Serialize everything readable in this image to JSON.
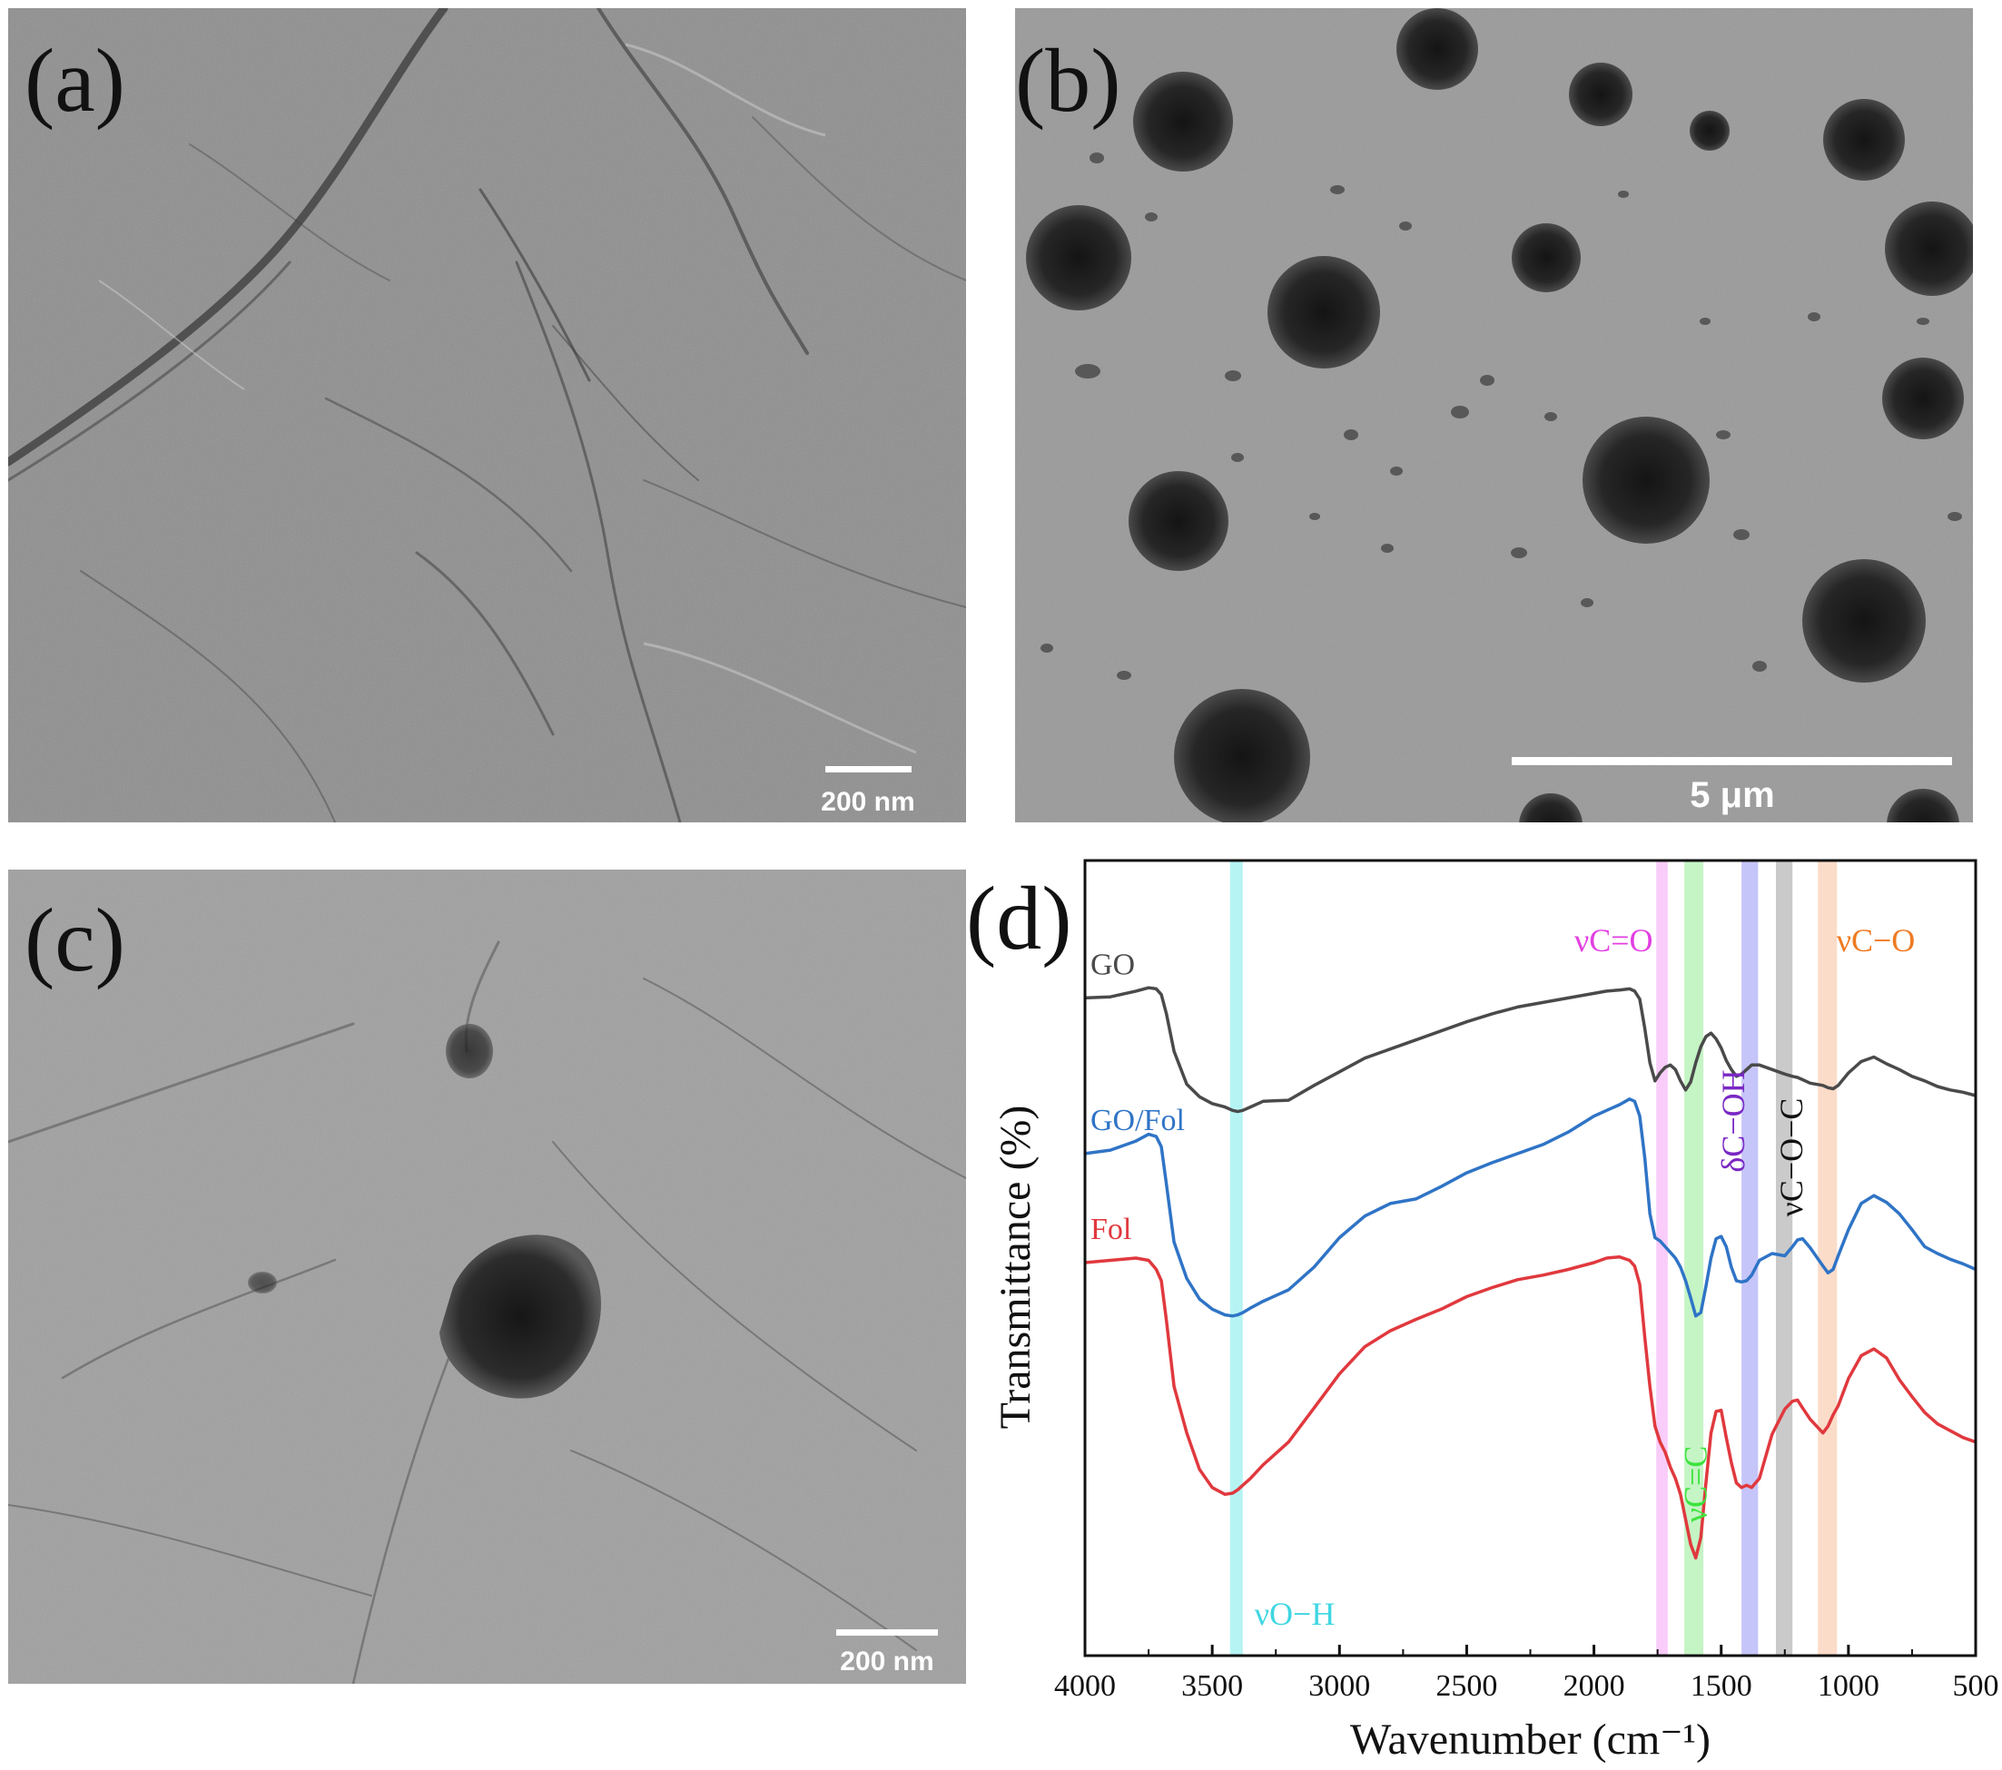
{
  "panels": {
    "a": {
      "label": "(a)",
      "scalebar": "200 nm"
    },
    "b": {
      "label": "(b)",
      "scalebar": "5 μm"
    },
    "c": {
      "label": "(c)",
      "scalebar": "200 nm"
    },
    "d": {
      "label": "(d)"
    }
  },
  "chart_data": {
    "type": "line",
    "title": "",
    "xlabel": "Wavenumber (cm⁻¹)",
    "ylabel": "Transmittance (%)",
    "xlim": [
      4000,
      500
    ],
    "x_reversed": true,
    "xticks": [
      4000,
      3500,
      3000,
      2500,
      2000,
      1500,
      1000,
      500
    ],
    "yticks": [],
    "grid": false,
    "legend": "labels placed at left of each curve",
    "series": [
      {
        "name": "GO",
        "color": "#4a4a4a",
        "relative_transmittance": true,
        "x": [
          4000,
          3900,
          3800,
          3750,
          3720,
          3700,
          3680,
          3650,
          3600,
          3550,
          3500,
          3450,
          3420,
          3400,
          3380,
          3350,
          3300,
          3200,
          3100,
          3000,
          2900,
          2800,
          2700,
          2600,
          2500,
          2400,
          2300,
          2200,
          2100,
          2000,
          1950,
          1900,
          1860,
          1840,
          1820,
          1800,
          1780,
          1760,
          1740,
          1720,
          1700,
          1680,
          1660,
          1640,
          1620,
          1600,
          1580,
          1560,
          1540,
          1520,
          1500,
          1480,
          1460,
          1440,
          1420,
          1400,
          1380,
          1350,
          1300,
          1250,
          1220,
          1200,
          1180,
          1150,
          1100,
          1080,
          1060,
          1040,
          1000,
          950,
          900,
          850,
          800,
          750,
          700,
          650,
          600,
          550,
          500
        ],
        "y": [
          77.9,
          78.0,
          78.5,
          78.8,
          78.7,
          78.2,
          76.5,
          73.2,
          70.3,
          69.2,
          68.6,
          68.3,
          68.0,
          67.9,
          68.0,
          68.3,
          68.8,
          68.9,
          70.2,
          71.4,
          72.6,
          73.4,
          74.2,
          75.0,
          75.8,
          76.5,
          77.1,
          77.5,
          77.9,
          78.3,
          78.5,
          78.6,
          78.7,
          78.5,
          77.8,
          75.2,
          72.2,
          70.6,
          71.3,
          71.8,
          72.0,
          71.6,
          70.6,
          69.8,
          70.5,
          72.2,
          73.6,
          74.5,
          74.8,
          74.3,
          73.5,
          72.4,
          71.6,
          71.0,
          71.2,
          71.6,
          72.0,
          72.0,
          71.6,
          71.2,
          71.0,
          70.9,
          70.7,
          70.4,
          70.2,
          70.0,
          69.9,
          70.2,
          71.3,
          72.3,
          72.7,
          72.1,
          71.6,
          71.0,
          70.6,
          70.1,
          69.8,
          69.6,
          69.3
        ]
      },
      {
        "name": "GO/Fol",
        "color": "#2f74c6",
        "relative_transmittance": true,
        "x": [
          4000,
          3900,
          3800,
          3750,
          3720,
          3700,
          3680,
          3650,
          3600,
          3550,
          3500,
          3450,
          3420,
          3400,
          3380,
          3350,
          3300,
          3200,
          3100,
          3000,
          2900,
          2800,
          2700,
          2600,
          2500,
          2400,
          2300,
          2200,
          2100,
          2000,
          1950,
          1900,
          1860,
          1840,
          1820,
          1800,
          1780,
          1760,
          1740,
          1720,
          1700,
          1680,
          1660,
          1640,
          1620,
          1600,
          1580,
          1560,
          1540,
          1520,
          1500,
          1480,
          1460,
          1440,
          1420,
          1400,
          1380,
          1350,
          1300,
          1250,
          1220,
          1200,
          1180,
          1150,
          1100,
          1080,
          1060,
          1040,
          1000,
          950,
          900,
          850,
          800,
          750,
          700,
          650,
          600,
          550,
          500
        ],
        "y": [
          64.2,
          64.5,
          65.3,
          65.9,
          65.7,
          64.8,
          61.5,
          56.4,
          53.2,
          51.4,
          50.5,
          50.0,
          49.9,
          50.0,
          50.2,
          50.6,
          51.2,
          52.2,
          54.2,
          56.8,
          58.7,
          59.8,
          60.2,
          61.3,
          62.5,
          63.4,
          64.2,
          65.0,
          66.1,
          67.5,
          68.0,
          68.5,
          69.0,
          68.8,
          67.5,
          63.8,
          58.9,
          56.8,
          56.5,
          56.0,
          55.5,
          55.0,
          54.2,
          53.0,
          51.5,
          49.9,
          50.2,
          52.5,
          55.0,
          56.7,
          56.9,
          56.0,
          54.2,
          53.0,
          52.9,
          53.0,
          53.5,
          54.8,
          55.4,
          55.2,
          56.0,
          56.6,
          56.7,
          55.9,
          54.3,
          53.7,
          54.0,
          55.2,
          57.5,
          59.8,
          60.5,
          59.9,
          58.9,
          57.5,
          56.0,
          55.4,
          54.9,
          54.5,
          54.0
        ]
      },
      {
        "name": "Fol",
        "color": "#e0393e",
        "relative_transmittance": true,
        "x": [
          4000,
          3900,
          3800,
          3750,
          3720,
          3700,
          3680,
          3650,
          3600,
          3550,
          3500,
          3450,
          3420,
          3400,
          3380,
          3350,
          3300,
          3200,
          3100,
          3000,
          2900,
          2800,
          2700,
          2600,
          2500,
          2400,
          2300,
          2200,
          2100,
          2000,
          1950,
          1900,
          1860,
          1840,
          1820,
          1800,
          1780,
          1760,
          1740,
          1720,
          1700,
          1680,
          1660,
          1640,
          1620,
          1600,
          1580,
          1560,
          1540,
          1520,
          1500,
          1480,
          1460,
          1440,
          1420,
          1400,
          1380,
          1350,
          1300,
          1250,
          1220,
          1200,
          1180,
          1150,
          1100,
          1080,
          1060,
          1040,
          1000,
          950,
          900,
          850,
          800,
          750,
          700,
          650,
          600,
          550,
          500
        ],
        "y": [
          54.6,
          54.8,
          55.0,
          54.8,
          54.0,
          53.0,
          49.5,
          43.7,
          39.6,
          36.4,
          34.8,
          34.2,
          34.3,
          34.6,
          35.0,
          35.6,
          36.8,
          38.8,
          41.8,
          44.8,
          47.2,
          48.6,
          49.6,
          50.5,
          51.6,
          52.4,
          53.1,
          53.5,
          54.0,
          54.6,
          55.0,
          55.1,
          54.8,
          54.3,
          52.7,
          48.0,
          43.7,
          40.2,
          38.8,
          37.9,
          36.6,
          35.6,
          34.2,
          32.0,
          29.8,
          28.6,
          30.4,
          35.2,
          39.6,
          41.5,
          41.6,
          39.2,
          37.0,
          35.2,
          34.8,
          35.0,
          34.8,
          35.6,
          39.5,
          41.7,
          42.4,
          42.5,
          41.8,
          40.8,
          39.6,
          40.2,
          41.2,
          42.0,
          44.4,
          46.4,
          47.0,
          46.2,
          44.3,
          42.8,
          41.4,
          40.4,
          39.8,
          39.2,
          38.8
        ]
      }
    ],
    "bands": [
      {
        "label": "νO−H",
        "from": 3430,
        "to": 3380,
        "color": "#5ee6e6",
        "label_color": "#3fd6e2"
      },
      {
        "label": "νC=O",
        "from": 1755,
        "to": 1710,
        "color": "#f28ef2",
        "label_color": "#e23fe2"
      },
      {
        "label": "νC=C",
        "from": 1645,
        "to": 1570,
        "color": "#7ee67e",
        "label_color": "#3de33d"
      },
      {
        "label": "δC−OH",
        "from": 1420,
        "to": 1355,
        "color": "#7f7ff2",
        "label_color": "#7a28c4"
      },
      {
        "label": "νC−O−C",
        "from": 1285,
        "to": 1220,
        "color": "#8a8a8a",
        "label_color": "#111111"
      },
      {
        "label": "νC−O",
        "from": 1120,
        "to": 1045,
        "color": "#f6b287",
        "label_color": "#f07a22"
      }
    ]
  }
}
